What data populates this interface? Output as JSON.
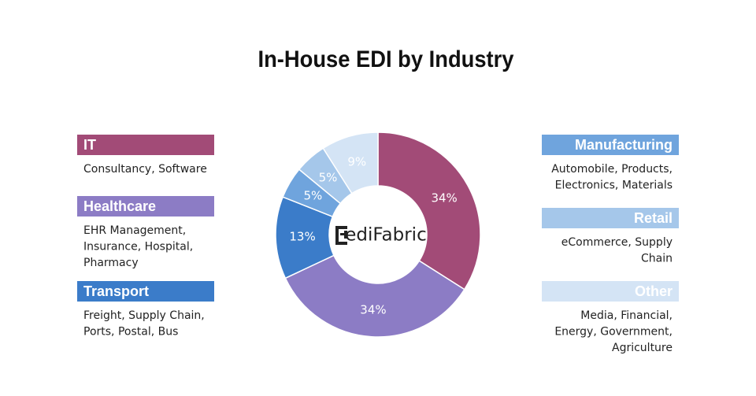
{
  "chart_data": {
    "type": "pie",
    "title": "In-House EDI by Industry",
    "categories": [
      "IT",
      "Healthcare",
      "Transport",
      "Manufacturing",
      "Retail",
      "Other"
    ],
    "values": [
      34,
      34,
      13,
      5,
      5,
      9
    ],
    "value_labels": [
      "34%",
      "34%",
      "13%",
      "5%",
      "5%",
      "9%"
    ],
    "colors": [
      "#a24b77",
      "#8c7cc5",
      "#3b7cc9",
      "#6fa4dd",
      "#a5c7ea",
      "#d4e4f5"
    ],
    "descriptions": [
      [
        "Consultancy, Software"
      ],
      [
        "EHR Management,",
        "Insurance, Hospital,",
        "Pharmacy"
      ],
      [
        "Freight, Supply Chain,",
        "Ports, Postal, Bus"
      ],
      [
        "Automobile, Products,",
        "Electronics, Materials"
      ],
      [
        "eCommerce, Supply",
        "Chain"
      ],
      [
        "Media, Financial,",
        "Energy, Government,",
        "Agriculture"
      ]
    ],
    "center_label": "ediFabric"
  }
}
